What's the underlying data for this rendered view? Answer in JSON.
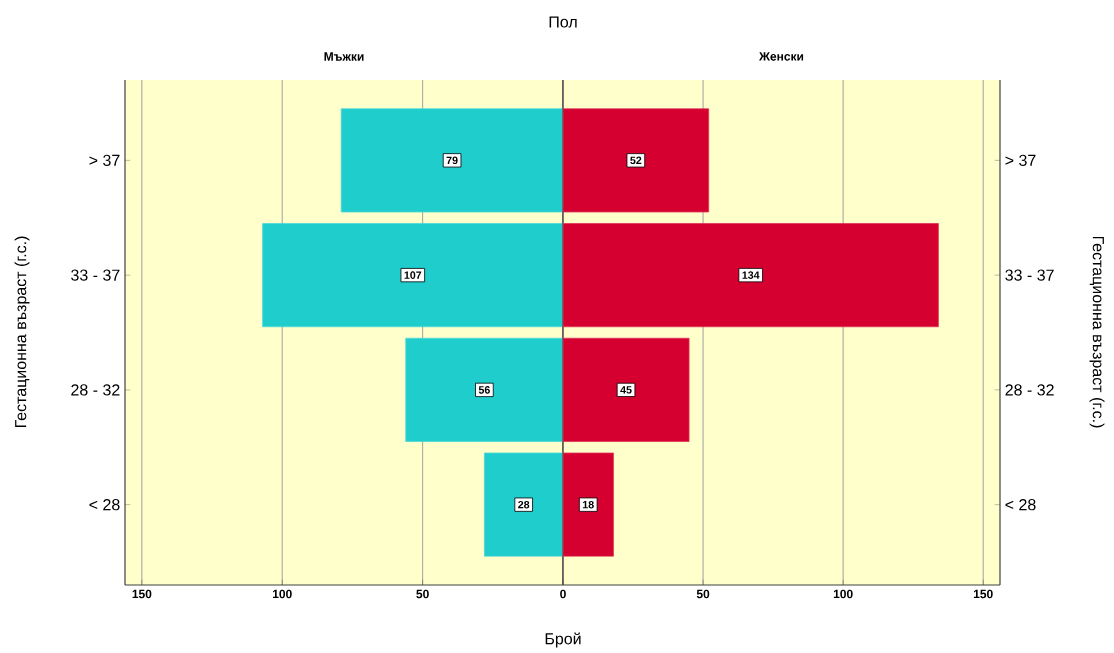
{
  "chart_data": [
    {
      "type": "bar",
      "orientation": "horizontal",
      "annotations": [
        "Пол"
      ],
      "title": "Мъжки",
      "xlabel": "Брой",
      "ylabel": "Гестационна възраст (г.с.)",
      "categories": [
        "> 37",
        "33 - 37",
        "28 - 32",
        "< 28"
      ],
      "values": [
        79,
        107,
        56,
        28
      ],
      "color": "#1fcdcd",
      "xlim": [
        156,
        0
      ],
      "xticks": [
        {
          "value": 0,
          "label": null
        },
        50,
        100,
        150
      ],
      "grid": "x",
      "data_labels": true
    },
    {
      "type": "bar",
      "orientation": "horizontal",
      "title": "Женски",
      "y2label": "Гестационна възраст (г.с.)",
      "categories": [
        "> 37",
        "33 - 37",
        "28 - 32",
        "< 28"
      ],
      "values": [
        52,
        134,
        45,
        18
      ],
      "color": "#d5002f",
      "xlim": [
        0,
        156
      ],
      "xticks": [
        0,
        50,
        100,
        150
      ],
      "grid": "x",
      "data_labels": true
    }
  ]
}
